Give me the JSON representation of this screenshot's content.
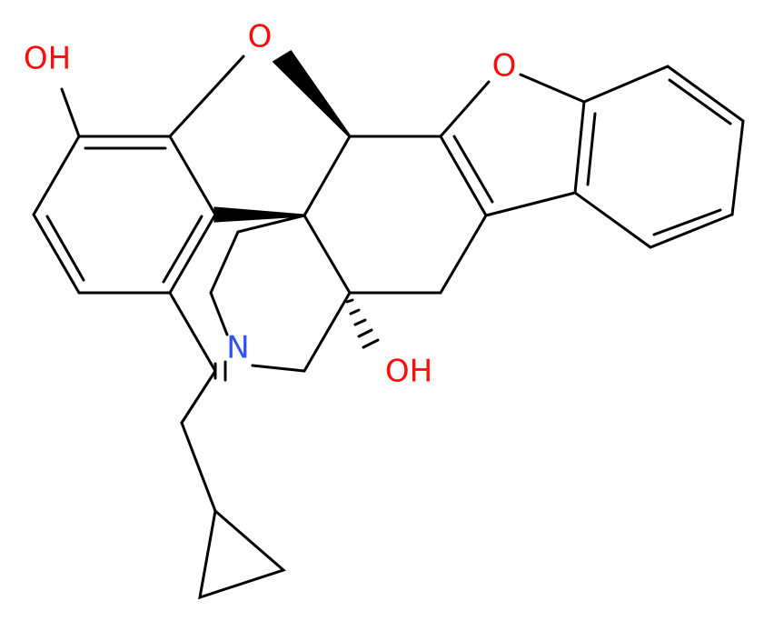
{
  "atoms": [
    {
      "label": "OH"
    },
    {
      "label": "O"
    },
    {
      "label": "O"
    },
    {
      "label": "N"
    },
    {
      "label": "OH"
    }
  ]
}
